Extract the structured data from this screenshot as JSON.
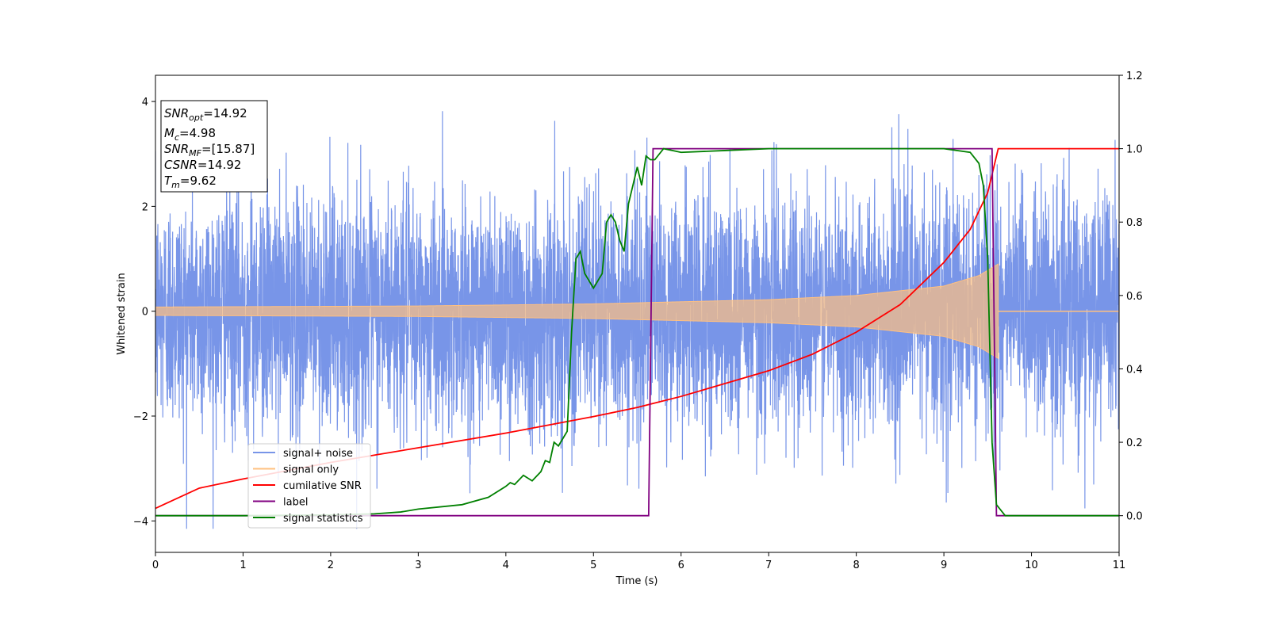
{
  "chart_data": {
    "type": "line",
    "xlabel": "Time (s)",
    "ylabel": "Whitened strain",
    "xlim": [
      0,
      11
    ],
    "ylim": [
      -4.6,
      4.5
    ],
    "y2lim": [
      -0.1,
      1.2
    ],
    "x_ticks": [
      0,
      1,
      2,
      3,
      4,
      5,
      6,
      7,
      8,
      9,
      10,
      11
    ],
    "y_ticks": [
      -4,
      -2,
      0,
      2,
      4
    ],
    "y2_ticks": [
      0.0,
      0.2,
      0.4,
      0.6,
      0.8,
      1.0,
      1.2
    ],
    "legend_position": "lower-left",
    "grid": false,
    "info_box": [
      {
        "base": "SNR",
        "sub": "opt",
        "value": "=14.92"
      },
      {
        "base": "M",
        "sub": "c",
        "value": "=4.98"
      },
      {
        "base": "SNR",
        "sub": "MF",
        "value": "=[15.87]"
      },
      {
        "base": "CSNR",
        "sub": "",
        "value": "=14.92"
      },
      {
        "base": "T",
        "sub": "m",
        "value": "=9.62"
      }
    ],
    "series": [
      {
        "name": "signal+ noise",
        "color": "#7895e8",
        "axis": "left",
        "noise_sigma": 1.1,
        "range": [
          -4.15,
          4.1
        ]
      },
      {
        "name": "signal only",
        "color": "#ffc080",
        "axis": "left",
        "merger_time": 9.62,
        "envelope": [
          [
            0,
            0.08
          ],
          [
            3,
            0.1
          ],
          [
            5,
            0.14
          ],
          [
            7,
            0.22
          ],
          [
            8,
            0.3
          ],
          [
            9,
            0.48
          ],
          [
            9.4,
            0.68
          ],
          [
            9.62,
            0.9
          ]
        ]
      },
      {
        "name": "cumilative SNR",
        "color": "#ff0000",
        "axis": "right",
        "x": [
          0,
          0.5,
          1,
          2,
          3,
          4,
          5,
          5.5,
          6,
          7,
          7.5,
          8,
          8.5,
          9,
          9.3,
          9.5,
          9.62,
          9.7,
          11
        ],
        "y": [
          0.02,
          0.075,
          0.1,
          0.145,
          0.185,
          0.225,
          0.27,
          0.295,
          0.325,
          0.395,
          0.44,
          0.5,
          0.575,
          0.69,
          0.78,
          0.88,
          1.0,
          1.0,
          1.0
        ]
      },
      {
        "name": "label",
        "color": "#800080",
        "axis": "right",
        "x": [
          0,
          5.63,
          5.68,
          9.55,
          9.6,
          11
        ],
        "y": [
          0,
          0,
          1,
          1,
          0,
          0
        ]
      },
      {
        "name": "signal statistics",
        "color": "#008000",
        "axis": "right",
        "x": [
          0,
          1,
          2,
          2.5,
          2.8,
          3,
          3.5,
          3.8,
          4,
          4.05,
          4.1,
          4.2,
          4.3,
          4.4,
          4.45,
          4.5,
          4.55,
          4.6,
          4.7,
          4.75,
          4.8,
          4.85,
          4.9,
          5,
          5.1,
          5.15,
          5.2,
          5.25,
          5.3,
          5.35,
          5.4,
          5.45,
          5.5,
          5.55,
          5.6,
          5.65,
          5.7,
          5.8,
          5.9,
          6,
          6.5,
          7,
          8,
          9,
          9.3,
          9.4,
          9.45,
          9.5,
          9.55,
          9.6,
          9.7,
          9.8,
          11
        ],
        "y": [
          0.0,
          0.0,
          0.002,
          0.005,
          0.01,
          0.018,
          0.03,
          0.05,
          0.08,
          0.09,
          0.085,
          0.11,
          0.095,
          0.12,
          0.15,
          0.145,
          0.2,
          0.19,
          0.23,
          0.5,
          0.7,
          0.72,
          0.66,
          0.62,
          0.66,
          0.8,
          0.82,
          0.8,
          0.75,
          0.72,
          0.85,
          0.9,
          0.95,
          0.9,
          0.98,
          0.97,
          0.97,
          1.0,
          0.995,
          0.99,
          0.995,
          1.0,
          1.0,
          1.0,
          0.99,
          0.96,
          0.9,
          0.7,
          0.2,
          0.03,
          0.0,
          0.0,
          0.0
        ]
      }
    ]
  }
}
